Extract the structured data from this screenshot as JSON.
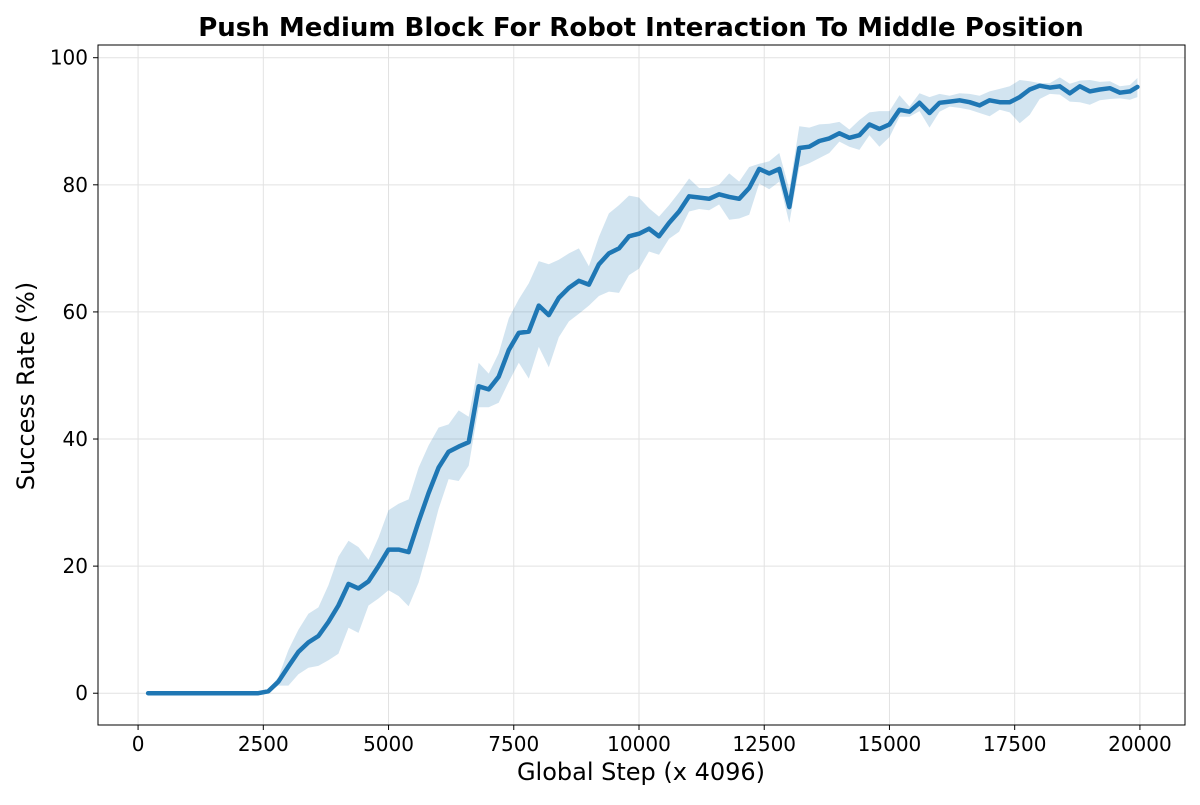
{
  "chart_data": {
    "type": "line",
    "title": "Push Medium Block For Robot Interaction To Middle Position",
    "xlabel": "Global Step (x 4096)",
    "ylabel": "Success Rate (%)",
    "xlim": [
      -800,
      20900
    ],
    "ylim": [
      -5,
      102
    ],
    "xticks": [
      0,
      2500,
      5000,
      7500,
      10000,
      12500,
      15000,
      17500,
      20000
    ],
    "yticks": [
      0,
      20,
      40,
      60,
      80,
      100
    ],
    "grid": true,
    "legend": "none",
    "colors": {
      "line": "#1f77b4",
      "band": "#1f77b4"
    },
    "series": [
      {
        "band_opacity": 0.2,
        "x": [
          200,
          400,
          600,
          800,
          1000,
          1200,
          1400,
          1600,
          1800,
          2000,
          2200,
          2400,
          2600,
          2800,
          3000,
          3200,
          3400,
          3600,
          3800,
          4000,
          4200,
          4400,
          4600,
          4800,
          5000,
          5200,
          5400,
          5600,
          5800,
          6000,
          6200,
          6400,
          6600,
          6800,
          7000,
          7200,
          7400,
          7600,
          7800,
          8000,
          8200,
          8400,
          8600,
          8800,
          9000,
          9200,
          9400,
          9600,
          9800,
          10000,
          10200,
          10400,
          10600,
          10800,
          11000,
          11200,
          11400,
          11600,
          11800,
          12000,
          12200,
          12400,
          12600,
          12800,
          13000,
          13200,
          13400,
          13600,
          13800,
          14000,
          14200,
          14400,
          14600,
          14800,
          15000,
          15200,
          15400,
          15600,
          15800,
          16000,
          16200,
          16400,
          16600,
          16800,
          17000,
          17200,
          17400,
          17600,
          17800,
          18000,
          18200,
          18400,
          18600,
          18800,
          19000,
          19200,
          19400,
          19600,
          19800,
          19950
        ],
        "mean": [
          0,
          0,
          0,
          0,
          0,
          0,
          0,
          0,
          0,
          0,
          0,
          0,
          0.3,
          1.8,
          4.2,
          6.5,
          8.0,
          9.0,
          11.2,
          13.8,
          17.2,
          16.5,
          17.6,
          20.0,
          22.6,
          22.6,
          22.2,
          27.0,
          31.5,
          35.5,
          38.0,
          38.8,
          39.5,
          48.3,
          47.8,
          49.8,
          54.0,
          56.7,
          56.9,
          61.0,
          59.5,
          62.2,
          63.8,
          64.9,
          64.3,
          67.5,
          69.2,
          70.0,
          71.9,
          72.3,
          73.1,
          71.9,
          74.0,
          75.8,
          78.2,
          78.0,
          77.8,
          78.5,
          78.1,
          77.8,
          79.5,
          82.5,
          81.8,
          82.5,
          76.5,
          85.8,
          86.0,
          86.9,
          87.3,
          88.1,
          87.4,
          87.8,
          89.5,
          88.8,
          89.5,
          91.8,
          91.5,
          92.9,
          91.3,
          92.9,
          93.1,
          93.3,
          93.0,
          92.5,
          93.3,
          93.0,
          93.0,
          93.8,
          95.0,
          95.6,
          95.3,
          95.5,
          94.4,
          95.5,
          94.7,
          95.0,
          95.2,
          94.5,
          94.7,
          95.4
        ],
        "lower": [
          0,
          0,
          0,
          0,
          0,
          0,
          0,
          0,
          0,
          0,
          0,
          0,
          0.1,
          1.2,
          1.2,
          3.0,
          4.0,
          4.3,
          5.2,
          6.2,
          10.3,
          9.5,
          13.8,
          14.9,
          16.2,
          15.3,
          13.7,
          17.4,
          23.0,
          29.0,
          33.7,
          33.4,
          35.8,
          45.0,
          45.0,
          45.7,
          49.0,
          52.0,
          49.5,
          54.5,
          51.3,
          56.0,
          58.5,
          59.7,
          61.0,
          62.5,
          63.2,
          63.0,
          65.8,
          66.8,
          69.5,
          69.0,
          71.5,
          72.6,
          75.8,
          76.2,
          76.0,
          76.9,
          74.5,
          74.7,
          75.3,
          80.2,
          79.3,
          80.5,
          74.0,
          82.8,
          83.4,
          84.2,
          85.0,
          86.8,
          86.0,
          85.5,
          87.8,
          86.0,
          87.5,
          90.7,
          90.7,
          91.6,
          89.0,
          91.5,
          92.3,
          92.1,
          91.8,
          91.3,
          90.8,
          91.8,
          91.4,
          89.7,
          91.0,
          93.5,
          94.3,
          94.2,
          93.1,
          93.0,
          92.6,
          93.3,
          93.5,
          93.6,
          93.4,
          93.8
        ],
        "upper": [
          0,
          0,
          0,
          0,
          0,
          0,
          0,
          0,
          0,
          0,
          0,
          0,
          0.6,
          2.5,
          6.8,
          10.0,
          12.5,
          13.5,
          17.0,
          21.5,
          24.0,
          23.0,
          21.0,
          24.5,
          28.8,
          29.8,
          30.5,
          35.5,
          39.0,
          41.8,
          42.3,
          44.5,
          43.5,
          52.0,
          50.3,
          53.5,
          59.0,
          62.0,
          64.5,
          68.0,
          67.5,
          68.2,
          69.2,
          70.0,
          67.2,
          71.8,
          75.5,
          76.8,
          78.3,
          78.0,
          76.3,
          75.0,
          76.8,
          78.8,
          81.0,
          79.5,
          79.5,
          80.0,
          81.8,
          80.5,
          82.8,
          83.3,
          83.7,
          85.0,
          79.3,
          89.2,
          89.0,
          89.5,
          89.6,
          89.9,
          88.7,
          90.2,
          91.4,
          91.6,
          91.6,
          94.1,
          92.3,
          94.4,
          93.8,
          94.3,
          94.0,
          94.4,
          94.3,
          94.0,
          94.7,
          95.1,
          95.5,
          96.5,
          96.3,
          96.0,
          96.0,
          96.9,
          95.9,
          96.4,
          96.5,
          96.2,
          96.3,
          95.5,
          95.7,
          96.8
        ]
      }
    ]
  }
}
